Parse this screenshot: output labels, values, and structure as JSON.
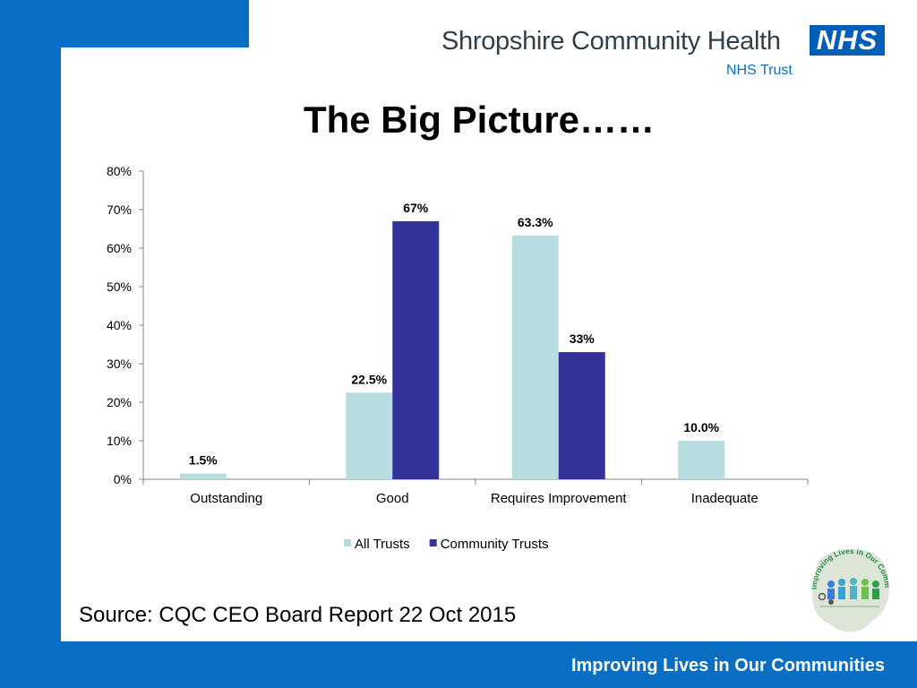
{
  "header": {
    "org_name": "Shropshire Community Health",
    "org_sub": "NHS Trust",
    "logo_text": "NHS"
  },
  "title": "The Big Picture……",
  "chart_data": {
    "type": "bar",
    "categories": [
      "Outstanding",
      "Good",
      "Requires Improvement",
      "Inadequate"
    ],
    "series": [
      {
        "name": "All Trusts",
        "values": [
          1.5,
          22.5,
          63.3,
          10.0
        ],
        "labels": [
          "1.5%",
          "22.5%",
          "63.3%",
          "10.0%"
        ],
        "color": "#b7dde1"
      },
      {
        "name": "Community Trusts",
        "values": [
          null,
          67,
          33,
          null
        ],
        "labels": [
          "",
          "67%",
          "33%",
          ""
        ],
        "color": "#333399"
      }
    ],
    "ylim": [
      0,
      80
    ],
    "yticks": [
      0,
      10,
      20,
      30,
      40,
      50,
      60,
      70,
      80
    ],
    "ytick_labels": [
      "0%",
      "10%",
      "20%",
      "30%",
      "40%",
      "50%",
      "60%",
      "70%",
      "80%"
    ],
    "legend_position": "bottom",
    "grid": false
  },
  "source": "Source: CQC CEO Board Report 22 Oct 2015",
  "emblem": {
    "text": "Improving Lives in Our Communities"
  },
  "footer": {
    "tagline": "Improving Lives in Our Communities"
  },
  "colors": {
    "brand_blue": "#0a6fc2",
    "nhs_blue": "#005eb8"
  }
}
